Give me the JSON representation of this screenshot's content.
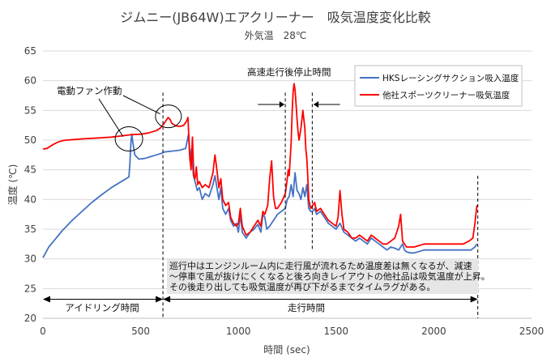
{
  "chart_data": {
    "type": "line",
    "title": "ジムニー(JB64W)エアクリーナー　吸気温度変化比較",
    "subtitle": "外気温　28℃",
    "xlabel": "時間 (sec)",
    "ylabel": "温度 (℃)",
    "xlim": [
      0,
      2500
    ],
    "ylim": [
      20,
      65
    ],
    "xticks": [
      "0",
      "500",
      "1000",
      "1500",
      "2000",
      "2500"
    ],
    "yticks": [
      "20",
      "25",
      "30",
      "35",
      "40",
      "45",
      "50",
      "55",
      "60",
      "65"
    ],
    "grid": "horizontal",
    "legend_position": "top-right",
    "series": [
      {
        "name": "HKSレーシングサクション吸入温度",
        "color": "#4472C4",
        "points": [
          [
            0,
            30.2
          ],
          [
            30,
            32.0
          ],
          [
            60,
            33.2
          ],
          [
            100,
            34.8
          ],
          [
            150,
            36.5
          ],
          [
            200,
            38.0
          ],
          [
            250,
            39.5
          ],
          [
            300,
            40.8
          ],
          [
            350,
            42.0
          ],
          [
            400,
            43.0
          ],
          [
            440,
            43.8
          ],
          [
            445,
            46.0
          ],
          [
            450,
            49.5
          ],
          [
            455,
            51.0
          ],
          [
            460,
            49.5
          ],
          [
            470,
            47.5
          ],
          [
            490,
            46.8
          ],
          [
            520,
            46.9
          ],
          [
            550,
            47.2
          ],
          [
            580,
            47.5
          ],
          [
            610,
            47.8
          ],
          [
            620,
            48.0
          ],
          [
            650,
            48.1
          ],
          [
            700,
            48.3
          ],
          [
            730,
            48.6
          ],
          [
            745,
            51.0
          ],
          [
            752,
            46.5
          ],
          [
            760,
            48.5
          ],
          [
            770,
            44.0
          ],
          [
            778,
            43.0
          ],
          [
            790,
            41.5
          ],
          [
            800,
            42.0
          ],
          [
            815,
            40.0
          ],
          [
            830,
            41.0
          ],
          [
            850,
            40.5
          ],
          [
            870,
            42.5
          ],
          [
            880,
            44.0
          ],
          [
            890,
            42.0
          ],
          [
            900,
            40.0
          ],
          [
            910,
            42.0
          ],
          [
            920,
            38.5
          ],
          [
            935,
            37.5
          ],
          [
            950,
            38.5
          ],
          [
            960,
            36.5
          ],
          [
            975,
            35.5
          ],
          [
            990,
            36.0
          ],
          [
            1000,
            34.5
          ],
          [
            1010,
            37.5
          ],
          [
            1020,
            34.5
          ],
          [
            1040,
            33.5
          ],
          [
            1060,
            34.5
          ],
          [
            1080,
            35.0
          ],
          [
            1100,
            35.8
          ],
          [
            1115,
            34.5
          ],
          [
            1125,
            37.5
          ],
          [
            1135,
            37.0
          ],
          [
            1145,
            35.0
          ],
          [
            1160,
            35.5
          ],
          [
            1180,
            36.5
          ],
          [
            1200,
            37.5
          ],
          [
            1220,
            38.0
          ],
          [
            1240,
            38.5
          ],
          [
            1250,
            40.0
          ],
          [
            1260,
            40.5
          ],
          [
            1270,
            42.5
          ],
          [
            1280,
            40.5
          ],
          [
            1290,
            44.5
          ],
          [
            1300,
            41.5
          ],
          [
            1310,
            41.0
          ],
          [
            1320,
            40.0
          ],
          [
            1330,
            42.0
          ],
          [
            1340,
            40.5
          ],
          [
            1350,
            42.5
          ],
          [
            1360,
            38.5
          ],
          [
            1370,
            38.0
          ],
          [
            1380,
            38.0
          ],
          [
            1390,
            38.5
          ],
          [
            1400,
            37.5
          ],
          [
            1420,
            38.0
          ],
          [
            1440,
            37.0
          ],
          [
            1460,
            36.0
          ],
          [
            1480,
            35.5
          ],
          [
            1500,
            35.0
          ],
          [
            1520,
            36.0
          ],
          [
            1540,
            34.5
          ],
          [
            1560,
            34.0
          ],
          [
            1580,
            33.5
          ],
          [
            1600,
            33.0
          ],
          [
            1620,
            33.5
          ],
          [
            1640,
            33.0
          ],
          [
            1660,
            32.5
          ],
          [
            1680,
            33.5
          ],
          [
            1700,
            33.0
          ],
          [
            1720,
            32.5
          ],
          [
            1740,
            32.0
          ],
          [
            1760,
            31.5
          ],
          [
            1780,
            32.0
          ],
          [
            1800,
            31.8
          ],
          [
            1820,
            31.5
          ],
          [
            1840,
            32.5
          ],
          [
            1850,
            31.5
          ],
          [
            1860,
            31.2
          ],
          [
            1880,
            31.0
          ],
          [
            1900,
            31.0
          ],
          [
            1950,
            31.5
          ],
          [
            2000,
            31.5
          ],
          [
            2050,
            31.5
          ],
          [
            2100,
            31.5
          ],
          [
            2150,
            31.5
          ],
          [
            2190,
            31.5
          ],
          [
            2210,
            32.0
          ],
          [
            2220,
            32.5
          ]
        ]
      },
      {
        "name": "他社スポーツクリーナー吸気温度",
        "color": "#FF0000",
        "points": [
          [
            0,
            48.5
          ],
          [
            20,
            48.6
          ],
          [
            40,
            49.0
          ],
          [
            60,
            49.4
          ],
          [
            80,
            49.7
          ],
          [
            100,
            49.9
          ],
          [
            120,
            50.0
          ],
          [
            160,
            50.1
          ],
          [
            200,
            50.2
          ],
          [
            250,
            50.3
          ],
          [
            300,
            50.4
          ],
          [
            350,
            50.5
          ],
          [
            400,
            50.7
          ],
          [
            450,
            50.9
          ],
          [
            500,
            51.0
          ],
          [
            540,
            51.2
          ],
          [
            580,
            51.6
          ],
          [
            600,
            52.0
          ],
          [
            620,
            52.8
          ],
          [
            630,
            53.3
          ],
          [
            640,
            53.8
          ],
          [
            650,
            53.5
          ],
          [
            660,
            52.8
          ],
          [
            680,
            52.4
          ],
          [
            700,
            52.3
          ],
          [
            720,
            52.5
          ],
          [
            735,
            53.2
          ],
          [
            742,
            53.8
          ],
          [
            745,
            51.5
          ],
          [
            752,
            47.0
          ],
          [
            758,
            45.0
          ],
          [
            765,
            50.5
          ],
          [
            772,
            44.0
          ],
          [
            778,
            43.5
          ],
          [
            785,
            45.5
          ],
          [
            792,
            42.5
          ],
          [
            800,
            43.0
          ],
          [
            815,
            42.0
          ],
          [
            830,
            42.5
          ],
          [
            850,
            42.0
          ],
          [
            870,
            44.5
          ],
          [
            880,
            47.5
          ],
          [
            890,
            45.0
          ],
          [
            900,
            42.0
          ],
          [
            910,
            43.5
          ],
          [
            920,
            40.0
          ],
          [
            935,
            39.0
          ],
          [
            950,
            39.5
          ],
          [
            960,
            37.0
          ],
          [
            975,
            36.0
          ],
          [
            990,
            35.5
          ],
          [
            1000,
            36.0
          ],
          [
            1010,
            38.5
          ],
          [
            1020,
            35.5
          ],
          [
            1040,
            34.0
          ],
          [
            1060,
            34.5
          ],
          [
            1080,
            35.5
          ],
          [
            1100,
            36.5
          ],
          [
            1115,
            35.5
          ],
          [
            1125,
            38.0
          ],
          [
            1135,
            37.5
          ],
          [
            1150,
            39.0
          ],
          [
            1160,
            43.5
          ],
          [
            1170,
            46.5
          ],
          [
            1180,
            40.5
          ],
          [
            1190,
            38.5
          ],
          [
            1200,
            38.5
          ],
          [
            1220,
            39.5
          ],
          [
            1240,
            41.0
          ],
          [
            1250,
            43.5
          ],
          [
            1255,
            45.0
          ],
          [
            1260,
            44.0
          ],
          [
            1270,
            49.5
          ],
          [
            1275,
            54.5
          ],
          [
            1280,
            58.0
          ],
          [
            1285,
            59.5
          ],
          [
            1290,
            58.5
          ],
          [
            1295,
            56.0
          ],
          [
            1300,
            53.5
          ],
          [
            1305,
            51.5
          ],
          [
            1310,
            50.0
          ],
          [
            1320,
            52.0
          ],
          [
            1330,
            55.0
          ],
          [
            1335,
            53.5
          ],
          [
            1340,
            52.0
          ],
          [
            1345,
            48.5
          ],
          [
            1350,
            47.0
          ],
          [
            1355,
            44.0
          ],
          [
            1360,
            40.0
          ],
          [
            1370,
            38.5
          ],
          [
            1380,
            39.0
          ],
          [
            1390,
            39.5
          ],
          [
            1400,
            38.0
          ],
          [
            1420,
            38.5
          ],
          [
            1440,
            37.5
          ],
          [
            1460,
            36.5
          ],
          [
            1480,
            36.0
          ],
          [
            1500,
            35.5
          ],
          [
            1510,
            37.0
          ],
          [
            1520,
            41.5
          ],
          [
            1530,
            37.5
          ],
          [
            1540,
            35.0
          ],
          [
            1560,
            34.5
          ],
          [
            1580,
            33.5
          ],
          [
            1600,
            33.5
          ],
          [
            1620,
            34.0
          ],
          [
            1640,
            33.5
          ],
          [
            1660,
            33.0
          ],
          [
            1680,
            34.0
          ],
          [
            1700,
            33.5
          ],
          [
            1720,
            33.0
          ],
          [
            1740,
            32.5
          ],
          [
            1760,
            32.5
          ],
          [
            1780,
            33.0
          ],
          [
            1800,
            33.5
          ],
          [
            1820,
            35.5
          ],
          [
            1830,
            37.5
          ],
          [
            1840,
            33.0
          ],
          [
            1850,
            32.5
          ],
          [
            1860,
            32.0
          ],
          [
            1880,
            32.0
          ],
          [
            1900,
            32.0
          ],
          [
            1950,
            32.5
          ],
          [
            2000,
            32.5
          ],
          [
            2050,
            32.5
          ],
          [
            2100,
            32.5
          ],
          [
            2150,
            32.5
          ],
          [
            2180,
            33.0
          ],
          [
            2200,
            33.5
          ],
          [
            2210,
            36.0
          ],
          [
            2220,
            39.0
          ]
        ]
      }
    ],
    "annotations": {
      "fan_label": "電動ファン作動",
      "highspeed_label": "高速走行後停止時間",
      "idle_label": "アイドリング時間",
      "drive_label": "走行時間",
      "note_lines": [
        "巡行中はエンジンルーム内に走行風が流れるため温度差は無くなるが、減速",
        "～停車で風が抜けにくくなると後ろ向きレイアウトの他社品は吸気温度が上昇。",
        "その後走り出しても吸気温度が再び下がるまでタイムラグがある。"
      ],
      "note_box_color": "#E7E6E6"
    }
  }
}
